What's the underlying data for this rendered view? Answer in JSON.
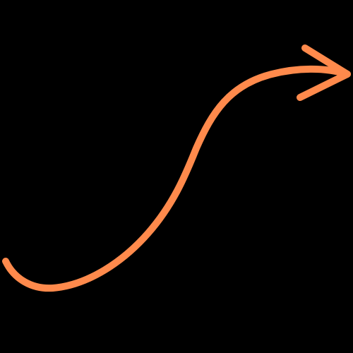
{
  "graphic": {
    "icon": "curved-arrow-icon",
    "stroke_color": "#FF8A4C",
    "background_color": "#000000",
    "direction": "right"
  }
}
